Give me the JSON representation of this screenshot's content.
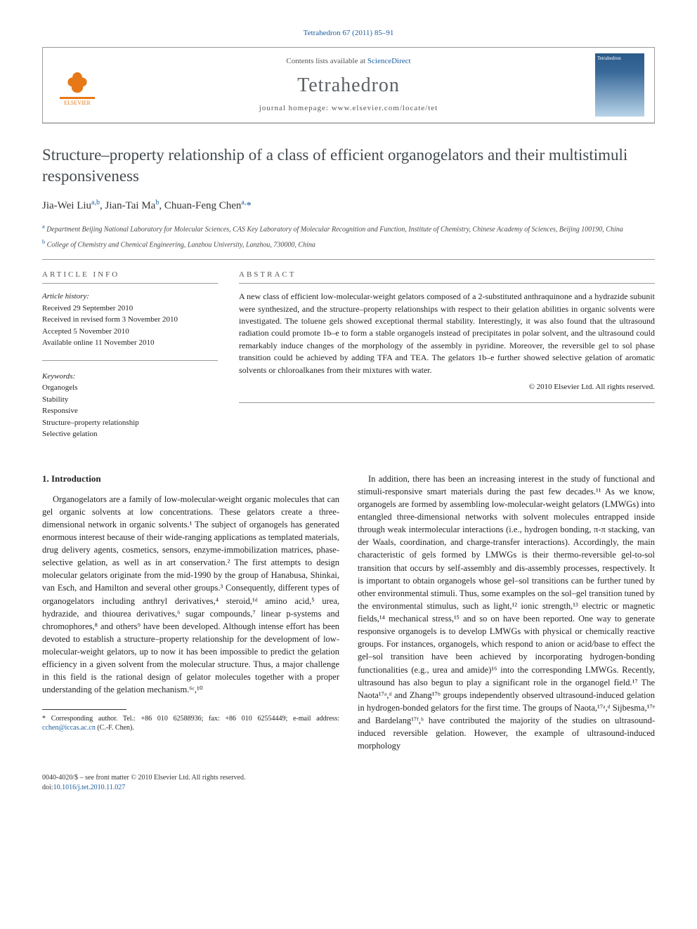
{
  "header": {
    "citation": "Tetrahedron 67 (2011) 85–91",
    "contents_prefix": "Contents lists available at ",
    "contents_link": "ScienceDirect",
    "journal": "Tetrahedron",
    "homepage_label": "journal homepage: ",
    "homepage_url": "www.elsevier.com/locate/tet",
    "elsevier_label": "ELSEVIER",
    "cover_label": "Tetrahedron"
  },
  "article": {
    "title": "Structure–property relationship of a class of efficient organogelators and their multistimuli responsiveness",
    "authors_html": "Jia-Wei Liu",
    "author1": "Jia-Wei Liu",
    "author1_sup": "a,b",
    "author2": "Jian-Tai Ma",
    "author2_sup": "b",
    "author3": "Chuan-Feng Chen",
    "author3_sup": "a,",
    "aff_a": "Department Beijing National Laboratory for Molecular Sciences, CAS Key Laboratory of Molecular Recognition and Function, Institute of Chemistry, Chinese Academy of Sciences, Beijing 100190, China",
    "aff_b": "College of Chemistry and Chemical Engineering, Lanzhou University, Lanzhou, 730000, China"
  },
  "info": {
    "label": "ARTICLE INFO",
    "history_label": "Article history:",
    "received": "Received 29 September 2010",
    "revised": "Received in revised form 3 November 2010",
    "accepted": "Accepted 5 November 2010",
    "online": "Available online 11 November 2010",
    "keywords_label": "Keywords:",
    "kw1": "Organogels",
    "kw2": "Stability",
    "kw3": "Responsive",
    "kw4": "Structure–property relationship",
    "kw5": "Selective gelation"
  },
  "abstract": {
    "label": "ABSTRACT",
    "text": "A new class of efficient low-molecular-weight gelators composed of a 2-substituted anthraquinone and a hydrazide subunit were synthesized, and the structure–property relationships with respect to their gelation abilities in organic solvents were investigated. The toluene gels showed exceptional thermal stability. Interestingly, it was also found that the ultrasound radiation could promote 1b–e to form a stable organogels instead of precipitates in polar solvent, and the ultrasound could remarkably induce changes of the morphology of the assembly in pyridine. Moreover, the reversible gel to sol phase transition could be achieved by adding TFA and TEA. The gelators 1b–e further showed selective gelation of aromatic solvents or chloroalkanes from their mixtures with water.",
    "copyright": "© 2010 Elsevier Ltd. All rights reserved."
  },
  "body": {
    "section1_heading": "1. Introduction",
    "col1_p1": "Organogelators are a family of low-molecular-weight organic molecules that can gel organic solvents at low concentrations. These gelators create a three-dimensional network in organic solvents.¹ The subject of organogels has generated enormous interest because of their wide-ranging applications as templated materials, drug delivery agents, cosmetics, sensors, enzyme-immobilization matrices, phase-selective gelation, as well as in art conservation.² The first attempts to design molecular gelators originate from the mid-1990 by the group of Hanabusa, Shinkai, van Esch, and Hamilton and several other groups.³ Consequently, different types of organogelators including anthryl derivatives,⁴ steroid,¹ᵈ amino acid,⁵ urea, hydrazide, and thiourea derivatives,⁶ sugar compounds,⁷ linear p-systems and chromophores,⁸ and others⁹ have been developed. Although intense effort has been devoted to establish a structure–property relationship for the development of low-molecular-weight gelators, up to now it has been impossible to predict the gelation efficiency in a given solvent from the molecular structure. Thus, a major challenge in this field is the rational design of gelator molecules together with a proper understanding of the gelation mechanism.⁶ᶜ,¹⁰",
    "col2_p1": "In addition, there has been an increasing interest in the study of functional and stimuli-responsive smart materials during the past few decades.¹¹ As we know, organogels are formed by assembling low-molecular-weight gelators (LMWGs) into entangled three-dimensional networks with solvent molecules entrapped inside through weak intermolecular interactions (i.e., hydrogen bonding, π-π stacking, van der Waals, coordination, and charge-transfer interactions). Accordingly, the main characteristic of gels formed by LMWGs is their thermo-reversible gel-to-sol transition that occurs by self-assembly and dis-assembly processes, respectively. It is important to obtain organogels whose gel–sol transitions can be further tuned by other environmental stimuli. Thus, some examples on the sol–gel transition tuned by the environmental stimulus, such as light,¹² ionic strength,¹³ electric or magnetic fields,¹⁴ mechanical stress,¹⁵ and so on have been reported. One way to generate responsive organogels is to develop LMWGs with physical or chemically reactive groups. For instances, organogels, which respond to anion or acid/base to effect the gel–sol transition have been achieved by incorporating hydrogen-bonding functionalities (e.g., urea and amide)¹⁶ into the corresponding LMWGs. Recently, ultrasound has also begun to play a significant role in the organogel field.¹⁷ The Naota¹⁷ᵃ,ᵈ and Zhang¹⁷ᵇ groups independently observed ultrasound-induced gelation in hydrogen-bonded gelators for the first time. The groups of Naota,¹⁷ᵃ,ᵈ Sijbesma,¹⁷ᵉ and Bardelang¹⁷ᶠ,ʰ have contributed the majority of the studies on ultrasound-induced reversible gelation. However, the example of ultrasound-induced morphology"
  },
  "footnote": {
    "corr_label": "* Corresponding author. Tel.: +86 010 62588936; fax: +86 010 62554449; e-mail address: ",
    "email": "cchen@iccas.ac.cn",
    "corr_suffix": " (C.-F. Chen)."
  },
  "footer": {
    "left1": "0040-4020/$ – see front matter © 2010 Elsevier Ltd. All rights reserved.",
    "left2": "doi:",
    "doi": "10.1016/j.tet.2010.11.027"
  },
  "colors": {
    "link": "#1a5d9e",
    "elsevier_orange": "#e67817",
    "title_gray": "#434a4f"
  }
}
